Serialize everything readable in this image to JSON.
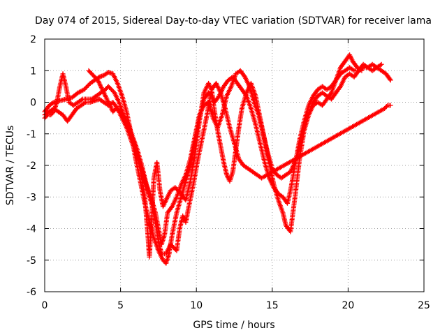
{
  "chart_data": {
    "type": "scatter",
    "title": "Day 074 of 2015, Sidereal Day-to-day VTEC variation (SDTVAR) for receiver lama",
    "xlabel": "GPS time / hours",
    "ylabel": "SDTVAR / TECUs",
    "xlim": [
      0,
      25
    ],
    "ylim": [
      -6,
      2
    ],
    "xticks": [
      "0",
      "5",
      "10",
      "15",
      "20",
      "25"
    ],
    "yticks": [
      "-6",
      "-5",
      "-4",
      "-3",
      "-2",
      "-1",
      "0",
      "1",
      "2"
    ],
    "grid": true,
    "grid_style": "dotted",
    "marker": "plus",
    "marker_color": "#ff0000",
    "series": [
      {
        "points": [
          [
            0.0,
            -0.3
          ],
          [
            0.3,
            -0.1
          ],
          [
            0.6,
            0.0
          ],
          [
            1.0,
            0.05
          ],
          [
            1.4,
            0.1
          ],
          [
            1.8,
            0.15
          ],
          [
            2.2,
            0.3
          ],
          [
            2.6,
            0.4
          ],
          [
            3.0,
            0.6
          ],
          [
            3.3,
            0.7
          ],
          [
            3.6,
            0.8
          ],
          [
            3.9,
            0.85
          ],
          [
            4.2,
            0.95
          ],
          [
            4.5,
            0.9
          ],
          [
            4.8,
            0.6
          ],
          [
            5.1,
            0.2
          ],
          [
            5.4,
            -0.3
          ],
          [
            5.7,
            -1.0
          ],
          [
            6.0,
            -1.8
          ],
          [
            6.3,
            -2.5
          ],
          [
            6.6,
            -3.2
          ],
          [
            6.9,
            -3.8
          ],
          [
            7.2,
            -4.3
          ],
          [
            7.5,
            -4.7
          ],
          [
            7.8,
            -5.0
          ],
          [
            8.0,
            -5.1
          ],
          [
            8.2,
            -4.8
          ],
          [
            8.4,
            -4.2
          ],
          [
            8.7,
            -3.5
          ],
          [
            9.0,
            -3.0
          ],
          [
            9.3,
            -2.5
          ],
          [
            9.6,
            -2.0
          ],
          [
            9.9,
            -1.2
          ],
          [
            10.2,
            -0.5
          ],
          [
            10.5,
            0.1
          ],
          [
            10.8,
            0.3
          ],
          [
            11.0,
            0.2
          ],
          [
            11.2,
            0.0
          ],
          [
            11.5,
            0.2
          ],
          [
            11.8,
            0.5
          ],
          [
            12.1,
            0.7
          ],
          [
            12.4,
            0.8
          ],
          [
            12.7,
            0.6
          ],
          [
            13.0,
            0.4
          ],
          [
            13.3,
            0.2
          ],
          [
            13.6,
            -0.2
          ],
          [
            13.9,
            -0.7
          ],
          [
            14.2,
            -1.3
          ],
          [
            14.5,
            -1.9
          ],
          [
            14.8,
            -2.4
          ],
          [
            15.1,
            -2.7
          ],
          [
            15.4,
            -2.9
          ],
          [
            15.7,
            -3.0
          ],
          [
            16.0,
            -3.2
          ],
          [
            16.2,
            -2.8
          ],
          [
            16.5,
            -2.0
          ],
          [
            16.8,
            -1.2
          ],
          [
            17.1,
            -0.6
          ],
          [
            17.4,
            -0.1
          ],
          [
            17.7,
            0.2
          ],
          [
            18.0,
            0.4
          ],
          [
            18.3,
            0.5
          ],
          [
            18.6,
            0.4
          ],
          [
            18.9,
            0.5
          ],
          [
            19.2,
            0.7
          ],
          [
            19.5,
            0.9
          ],
          [
            19.8,
            1.0
          ],
          [
            20.1,
            1.1
          ],
          [
            20.4,
            1.0
          ],
          [
            20.7,
            1.0
          ],
          [
            21.0,
            1.1
          ],
          [
            21.3,
            1.1
          ],
          [
            21.6,
            1.2
          ],
          [
            21.9,
            1.1
          ],
          [
            22.2,
            1.0
          ],
          [
            22.5,
            0.9
          ],
          [
            22.8,
            0.7
          ]
        ]
      },
      {
        "points": [
          [
            0.0,
            -0.4
          ],
          [
            0.3,
            -0.3
          ],
          [
            0.6,
            -0.2
          ],
          [
            0.9,
            -0.3
          ],
          [
            1.2,
            -0.4
          ],
          [
            1.5,
            -0.6
          ],
          [
            1.8,
            -0.4
          ],
          [
            2.1,
            -0.2
          ],
          [
            2.4,
            -0.1
          ],
          [
            2.7,
            0.0
          ],
          [
            3.0,
            0.0
          ],
          [
            3.3,
            0.05
          ],
          [
            3.6,
            0.1
          ],
          [
            3.9,
            0.0
          ],
          [
            4.2,
            -0.1
          ],
          [
            4.5,
            0.0
          ],
          [
            4.8,
            -0.2
          ],
          [
            5.1,
            -0.5
          ],
          [
            5.4,
            -0.8
          ],
          [
            5.7,
            -1.2
          ],
          [
            6.0,
            -1.6
          ],
          [
            6.2,
            -1.9
          ],
          [
            6.4,
            -2.4
          ],
          [
            6.6,
            -3.0
          ],
          [
            6.8,
            -4.2
          ],
          [
            6.9,
            -4.9
          ],
          [
            7.0,
            -4.1
          ],
          [
            7.2,
            -2.4
          ],
          [
            7.4,
            -1.9
          ],
          [
            7.6,
            -2.8
          ],
          [
            7.8,
            -3.3
          ],
          [
            8.0,
            -3.1
          ],
          [
            8.3,
            -2.8
          ],
          [
            8.6,
            -2.7
          ],
          [
            9.0,
            -2.9
          ],
          [
            9.3,
            -3.1
          ],
          [
            9.6,
            -2.5
          ],
          [
            9.9,
            -1.7
          ],
          [
            10.2,
            -0.6
          ],
          [
            10.5,
            0.3
          ],
          [
            10.8,
            0.6
          ],
          [
            11.0,
            0.4
          ],
          [
            11.2,
            -0.3
          ],
          [
            11.4,
            -0.9
          ],
          [
            11.6,
            -1.4
          ],
          [
            11.8,
            -1.9
          ],
          [
            12.0,
            -2.3
          ],
          [
            12.2,
            -2.5
          ],
          [
            12.4,
            -2.2
          ],
          [
            12.6,
            -1.5
          ],
          [
            12.8,
            -0.8
          ],
          [
            13.0,
            -0.2
          ],
          [
            13.3,
            0.3
          ],
          [
            13.6,
            0.6
          ],
          [
            13.9,
            0.2
          ],
          [
            14.2,
            -0.5
          ],
          [
            14.5,
            -1.2
          ],
          [
            14.8,
            -1.9
          ],
          [
            15.1,
            -2.6
          ],
          [
            15.4,
            -3.1
          ],
          [
            15.7,
            -3.5
          ],
          [
            15.9,
            -3.9
          ],
          [
            16.2,
            -4.1
          ],
          [
            16.5,
            -3.0
          ],
          [
            16.8,
            -1.8
          ],
          [
            17.1,
            -0.9
          ],
          [
            17.4,
            -0.4
          ],
          [
            17.7,
            -0.1
          ],
          [
            18.0,
            0.0
          ],
          [
            18.3,
            -0.1
          ],
          [
            18.6,
            0.1
          ],
          [
            18.9,
            0.3
          ],
          [
            19.2,
            0.7
          ],
          [
            19.5,
            1.1
          ],
          [
            19.8,
            1.3
          ],
          [
            20.1,
            1.5
          ],
          [
            20.3,
            1.3
          ],
          [
            20.6,
            1.1
          ],
          [
            20.9,
            1.0
          ]
        ]
      },
      {
        "points": [
          [
            0.0,
            -0.5
          ],
          [
            0.2,
            -0.4
          ],
          [
            0.4,
            -0.4
          ],
          [
            0.6,
            -0.3
          ],
          [
            0.8,
            0.0
          ],
          [
            1.0,
            0.5
          ],
          [
            1.2,
            0.9
          ],
          [
            1.4,
            0.5
          ],
          [
            1.6,
            0.0
          ],
          [
            1.9,
            -0.1
          ],
          [
            2.2,
            0.0
          ],
          [
            2.5,
            0.1
          ],
          [
            2.8,
            0.1
          ],
          [
            3.1,
            0.1
          ],
          [
            3.4,
            0.2
          ],
          [
            3.7,
            0.3
          ],
          [
            4.0,
            0.4
          ],
          [
            4.2,
            0.5
          ],
          [
            4.4,
            0.4
          ],
          [
            4.6,
            0.3
          ],
          [
            4.9,
            0.0
          ],
          [
            5.2,
            -0.4
          ],
          [
            5.5,
            -0.7
          ],
          [
            5.8,
            -1.1
          ],
          [
            6.1,
            -1.5
          ],
          [
            6.4,
            -2.0
          ],
          [
            6.7,
            -2.6
          ],
          [
            7.0,
            -3.0
          ],
          [
            7.3,
            -3.5
          ],
          [
            7.5,
            -4.0
          ],
          [
            7.7,
            -4.5
          ],
          [
            7.9,
            -4.2
          ],
          [
            8.1,
            -3.5
          ],
          [
            8.4,
            -3.3
          ],
          [
            8.7,
            -3.0
          ],
          [
            9.0,
            -2.6
          ],
          [
            9.3,
            -2.3
          ],
          [
            9.6,
            -1.8
          ],
          [
            9.9,
            -1.1
          ],
          [
            10.2,
            -0.4
          ],
          [
            10.5,
            -0.1
          ],
          [
            10.8,
            0.0
          ],
          [
            11.1,
            -0.5
          ],
          [
            11.4,
            -0.8
          ],
          [
            11.7,
            -0.4
          ],
          [
            12.0,
            0.2
          ],
          [
            12.3,
            0.5
          ],
          [
            12.6,
            0.9
          ],
          [
            12.9,
            1.0
          ],
          [
            13.2,
            0.8
          ],
          [
            13.5,
            0.5
          ],
          [
            13.8,
            0.0
          ],
          [
            14.1,
            -0.4
          ],
          [
            14.4,
            -1.0
          ],
          [
            14.7,
            -1.6
          ],
          [
            15.0,
            -2.1
          ],
          [
            15.3,
            -2.3
          ],
          [
            15.6,
            -2.4
          ],
          [
            15.9,
            -2.3
          ],
          [
            16.2,
            -2.2
          ],
          [
            16.5,
            -1.9
          ],
          [
            16.8,
            -1.4
          ],
          [
            17.1,
            -0.8
          ],
          [
            17.4,
            -0.4
          ],
          [
            17.7,
            0.0
          ],
          [
            18.0,
            0.2
          ],
          [
            18.3,
            0.3
          ],
          [
            18.6,
            0.2
          ],
          [
            18.9,
            0.1
          ],
          [
            19.2,
            0.3
          ],
          [
            19.5,
            0.5
          ],
          [
            19.8,
            0.8
          ],
          [
            20.1,
            0.9
          ],
          [
            20.4,
            0.8
          ],
          [
            20.7,
            1.0
          ],
          [
            21.0,
            1.2
          ],
          [
            21.3,
            1.1
          ],
          [
            21.6,
            1.0
          ],
          [
            21.9,
            1.1
          ],
          [
            22.2,
            1.2
          ]
        ]
      },
      {
        "points": [
          [
            2.9,
            1.0
          ],
          [
            3.1,
            0.9
          ],
          [
            3.3,
            0.8
          ],
          [
            3.5,
            0.7
          ],
          [
            3.7,
            0.5
          ],
          [
            3.9,
            0.3
          ],
          [
            4.1,
            0.1
          ],
          [
            4.3,
            -0.1
          ],
          [
            4.5,
            -0.3
          ],
          [
            4.7,
            -0.2
          ],
          [
            5.0,
            -0.3
          ],
          [
            5.3,
            -0.5
          ],
          [
            5.6,
            -0.9
          ],
          [
            5.9,
            -1.3
          ],
          [
            6.2,
            -1.8
          ],
          [
            6.5,
            -2.3
          ],
          [
            6.8,
            -2.8
          ],
          [
            7.1,
            -3.3
          ],
          [
            7.3,
            -3.8
          ],
          [
            7.5,
            -4.4
          ],
          [
            7.7,
            -4.8
          ],
          [
            8.0,
            -4.8
          ],
          [
            8.3,
            -4.5
          ],
          [
            8.5,
            -4.6
          ],
          [
            8.7,
            -4.7
          ],
          [
            8.9,
            -4.0
          ],
          [
            9.1,
            -3.6
          ],
          [
            9.3,
            -3.8
          ],
          [
            9.5,
            -3.3
          ],
          [
            9.8,
            -2.6
          ],
          [
            10.1,
            -1.8
          ],
          [
            10.4,
            -1.1
          ],
          [
            10.7,
            -0.4
          ],
          [
            11.0,
            0.4
          ],
          [
            11.3,
            0.6
          ],
          [
            11.6,
            0.3
          ],
          [
            11.9,
            -0.2
          ],
          [
            12.2,
            -0.8
          ],
          [
            12.5,
            -1.3
          ],
          [
            12.8,
            -1.8
          ],
          [
            13.1,
            -2.0
          ],
          [
            13.4,
            -2.1
          ],
          [
            13.7,
            -2.2
          ],
          [
            14.0,
            -2.3
          ],
          [
            14.3,
            -2.4
          ],
          [
            22.4,
            -0.2
          ],
          [
            22.6,
            -0.1
          ],
          [
            22.8,
            -0.1
          ]
        ]
      }
    ]
  }
}
